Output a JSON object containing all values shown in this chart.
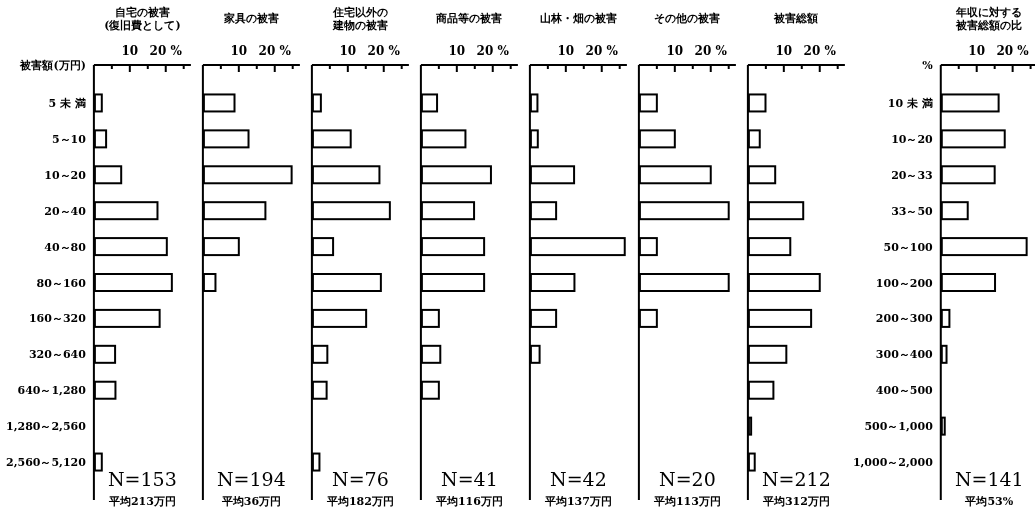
{
  "chart_data": [
    {
      "type": "bar",
      "orientation": "horizontal",
      "title": "自宅の被害(復旧費として)",
      "ylabel": "被害額(万円)",
      "categories": [
        "5 未 満",
        "5～10",
        "10～20",
        "20～40",
        "40～80",
        "80～160",
        "160～320",
        "320～640",
        "640～1,280",
        "1,280～2,560",
        "2,560～5,120"
      ],
      "values": [
        2.2,
        3.4,
        7.6,
        17.7,
        20.3,
        21.7,
        18.3,
        5.9,
        6.0,
        0,
        2.2
      ],
      "xlim": [
        0,
        27
      ],
      "xticks": [
        {
          "value": 5,
          "label": null
        },
        {
          "value": 10,
          "label": "10"
        },
        {
          "value": 15,
          "label": null
        },
        {
          "value": 20,
          "label": "20 %"
        },
        {
          "value": 25,
          "label": null
        }
      ],
      "annotations": [
        "N=153",
        "平均213万円"
      ]
    },
    {
      "type": "bar",
      "orientation": "horizontal",
      "title": "家具の被害",
      "categories": [
        null,
        null,
        null,
        null,
        null,
        null,
        null,
        null,
        null,
        null,
        null
      ],
      "values": [
        8.8,
        12.7,
        24.7,
        17.4,
        10.0,
        3.5,
        0,
        0,
        0,
        0,
        0
      ],
      "xlim": [
        0,
        27
      ],
      "xticks": [
        {
          "value": 5,
          "label": null
        },
        {
          "value": 10,
          "label": "10"
        },
        {
          "value": 15,
          "label": null
        },
        {
          "value": 20,
          "label": "20 %"
        },
        {
          "value": 25,
          "label": null
        }
      ],
      "tick_labels": "x",
      "annotations": [
        "N=194",
        "平均36万円"
      ]
    },
    {
      "type": "bar",
      "orientation": "horizontal",
      "title": "住宅以外の建物の被害",
      "categories": [
        null,
        null,
        null,
        null,
        null,
        null,
        null,
        null,
        null,
        null,
        null
      ],
      "values": [
        2.5,
        10.8,
        18.8,
        21.7,
        5.9,
        19.2,
        15.1,
        4.3,
        4.1,
        0,
        2.1
      ],
      "xlim": [
        0,
        27
      ],
      "xticks": [
        {
          "value": 5,
          "label": null
        },
        {
          "value": 10,
          "label": "10"
        },
        {
          "value": 15,
          "label": null
        },
        {
          "value": 20,
          "label": "20 %"
        },
        {
          "value": 25,
          "label": null
        }
      ],
      "tick_labels": "x",
      "annotations": [
        "N=76",
        "平均182万円"
      ]
    },
    {
      "type": "bar",
      "orientation": "horizontal",
      "title": "商品等の被害",
      "categories": [
        null,
        null,
        null,
        null,
        null,
        null,
        null,
        null,
        null,
        null,
        null
      ],
      "values": [
        4.5,
        12.4,
        19.5,
        14.8,
        17.6,
        17.6,
        5.0,
        5.4,
        5.0,
        0,
        0
      ],
      "xlim": [
        0,
        27
      ],
      "xticks": [
        {
          "value": 5,
          "label": null
        },
        {
          "value": 10,
          "label": "10"
        },
        {
          "value": 15,
          "label": null
        },
        {
          "value": 20,
          "label": "20 %"
        },
        {
          "value": 25,
          "label": null
        }
      ],
      "tick_labels": "x",
      "annotations": [
        "N=41",
        "平均116万円"
      ]
    },
    {
      "type": "bar",
      "orientation": "horizontal",
      "title": "山林・畑の被害",
      "categories": [
        null,
        null,
        null,
        null,
        null,
        null,
        null,
        null,
        null,
        null,
        null
      ],
      "values": [
        2.1,
        2.2,
        12.3,
        7.3,
        26.4,
        12.4,
        7.3,
        2.7,
        0,
        0,
        0
      ],
      "xlim": [
        0,
        27
      ],
      "xticks": [
        {
          "value": 5,
          "label": null
        },
        {
          "value": 10,
          "label": "10"
        },
        {
          "value": 15,
          "label": null
        },
        {
          "value": 20,
          "label": "20 %"
        },
        {
          "value": 25,
          "label": null
        }
      ],
      "tick_labels": "x",
      "annotations": [
        "N=42",
        "平均137万円"
      ]
    },
    {
      "type": "bar",
      "orientation": "horizontal",
      "title": "その他の被害",
      "categories": [
        null,
        null,
        null,
        null,
        null,
        null,
        null,
        null,
        null,
        null,
        null
      ],
      "values": [
        5,
        10,
        20,
        25,
        5,
        25,
        5,
        0,
        0,
        0,
        0
      ],
      "xlim": [
        0,
        27
      ],
      "xticks": [
        {
          "value": 5,
          "label": null
        },
        {
          "value": 10,
          "label": "10"
        },
        {
          "value": 15,
          "label": null
        },
        {
          "value": 20,
          "label": "20 %"
        },
        {
          "value": 25,
          "label": null
        }
      ],
      "tick_labels": "x",
      "annotations": [
        "N=20",
        "平均113万円"
      ]
    },
    {
      "type": "bar",
      "orientation": "horizontal",
      "title": "被害総額",
      "categories": [
        null,
        null,
        null,
        null,
        null,
        null,
        null,
        null,
        null,
        null,
        null
      ],
      "values": [
        4.9,
        3.3,
        7.6,
        15.4,
        11.8,
        20.0,
        17.6,
        10.7,
        7.1,
        0.9,
        1.9
      ],
      "xlim": [
        0,
        27
      ],
      "xticks": [
        {
          "value": 5,
          "label": null
        },
        {
          "value": 10,
          "label": "10"
        },
        {
          "value": 15,
          "label": null
        },
        {
          "value": 20,
          "label": "20 %"
        },
        {
          "value": 25,
          "label": null
        }
      ],
      "tick_labels": "x",
      "annotations": [
        "N=212",
        "平均312万円"
      ]
    },
    {
      "type": "bar",
      "orientation": "horizontal",
      "title": "年収に対する被害総額の比",
      "ylabel": "%",
      "categories": [
        "10 未 満",
        "10～20",
        "20～33",
        "33～50",
        "50～100",
        "100～200",
        "200～300",
        "300～400",
        "400～500",
        "500～1,000",
        "1,000～2,000"
      ],
      "values": [
        16.1,
        17.8,
        15.0,
        7.5,
        23.9,
        15.1,
        2.4,
        1.6,
        0,
        1.1,
        0
      ],
      "xlim": [
        0,
        27
      ],
      "xticks": [
        {
          "value": 5,
          "label": null
        },
        {
          "value": 10,
          "label": "10"
        },
        {
          "value": 15,
          "label": null
        },
        {
          "value": 20,
          "label": "20 %"
        },
        {
          "value": 25,
          "label": null
        }
      ],
      "annotations": [
        "N=141",
        "平均53%"
      ]
    }
  ]
}
